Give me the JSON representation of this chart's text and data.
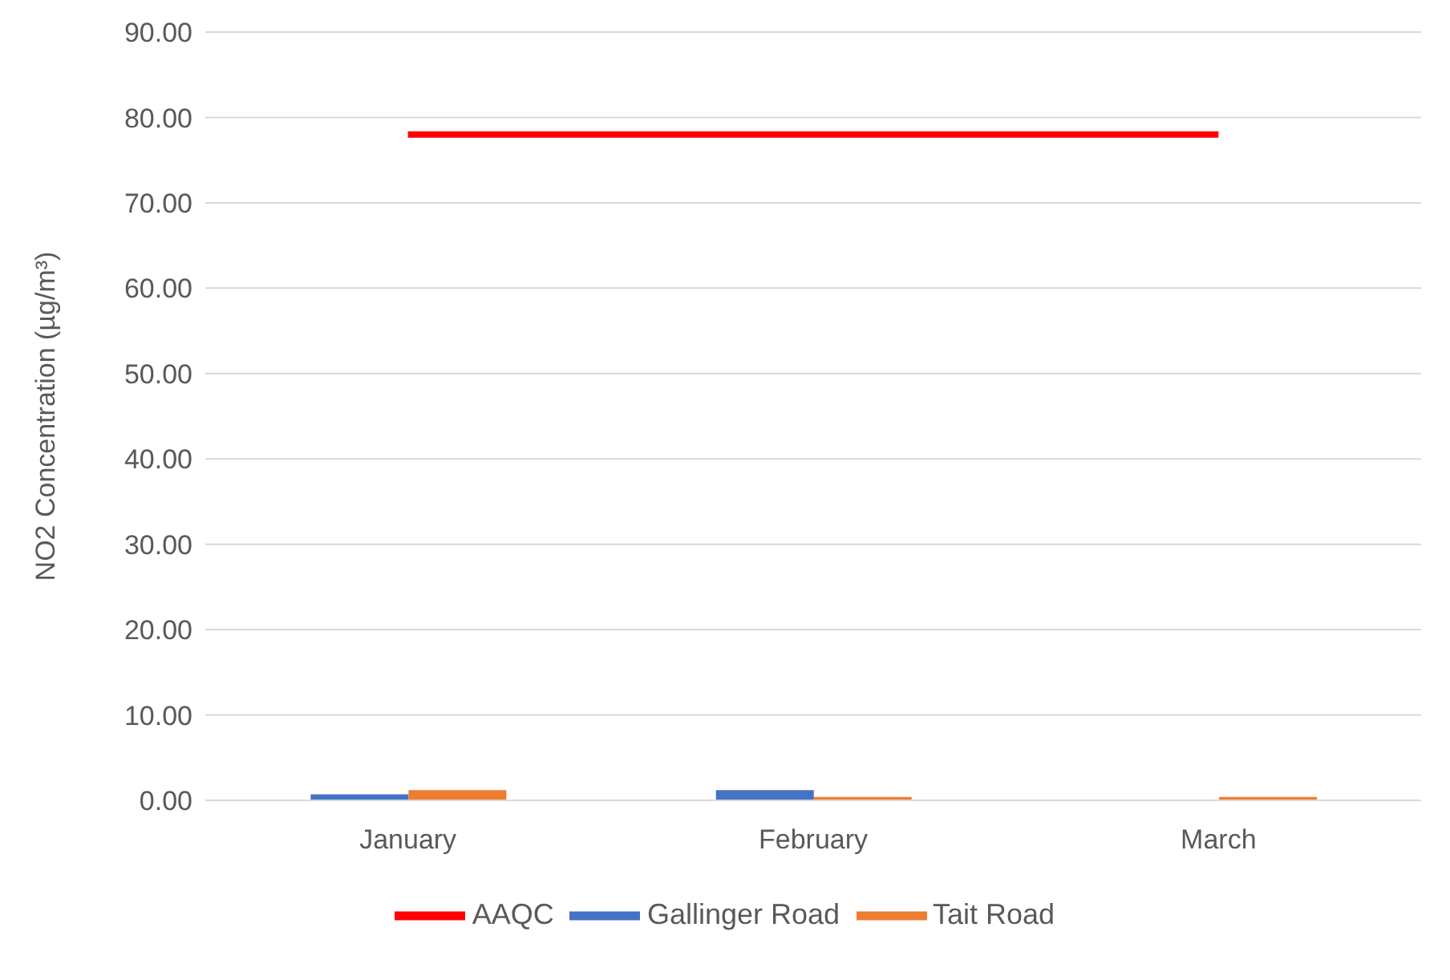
{
  "chart_data": {
    "type": "bar",
    "ylabel": "NO2 Concentration (µg/m³)",
    "categories": [
      "January",
      "February",
      "March"
    ],
    "series": [
      {
        "name": "Gallinger Road",
        "color": "#4472c4",
        "values": [
          0.7,
          1.2,
          null
        ]
      },
      {
        "name": "Tait Road",
        "color": "#ed7d31",
        "values": [
          1.2,
          0.4,
          0.4
        ]
      },
      {
        "name": "AAQC",
        "type": "line",
        "color": "#ff0000",
        "values": [
          78,
          78,
          78
        ],
        "marker": "none"
      }
    ],
    "ylim": [
      0,
      90
    ],
    "yticks": [
      {
        "value": 0,
        "label": "0.00"
      },
      {
        "value": 10,
        "label": "10.00"
      },
      {
        "value": 20,
        "label": "20.00"
      },
      {
        "value": 30,
        "label": "30.00"
      },
      {
        "value": 40,
        "label": "40.00"
      },
      {
        "value": 50,
        "label": "50.00"
      },
      {
        "value": 60,
        "label": "60.00"
      },
      {
        "value": 70,
        "label": "70.00"
      },
      {
        "value": 80,
        "label": "80.00"
      },
      {
        "value": 90,
        "label": "90.00"
      }
    ],
    "grid": "y",
    "legend": "bottom"
  }
}
